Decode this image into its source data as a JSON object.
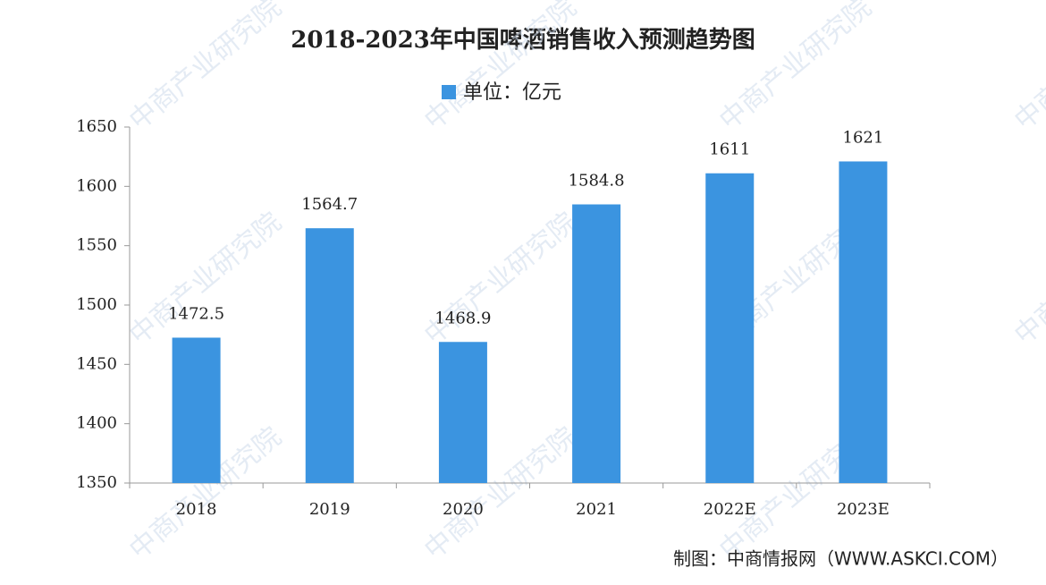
{
  "chart_data": {
    "type": "bar",
    "title": "2018-2023年中国啤酒销售收入预测趋势图",
    "categories": [
      "2018",
      "2019",
      "2020",
      "2021",
      "2022E",
      "2023E"
    ],
    "series": [
      {
        "name": "单位：亿元",
        "color": "#3b94e0",
        "values": [
          1472.5,
          1564.7,
          1468.9,
          1584.8,
          1611,
          1621
        ]
      }
    ],
    "ylim": [
      1350,
      1650
    ],
    "yticks": [
      1350,
      1400,
      1450,
      1500,
      1550,
      1600,
      1650
    ],
    "grid": false,
    "legend": "top",
    "source": "制图：中商情报网（WWW.ASKCI.COM）",
    "watermark": "中商产业研究院"
  }
}
